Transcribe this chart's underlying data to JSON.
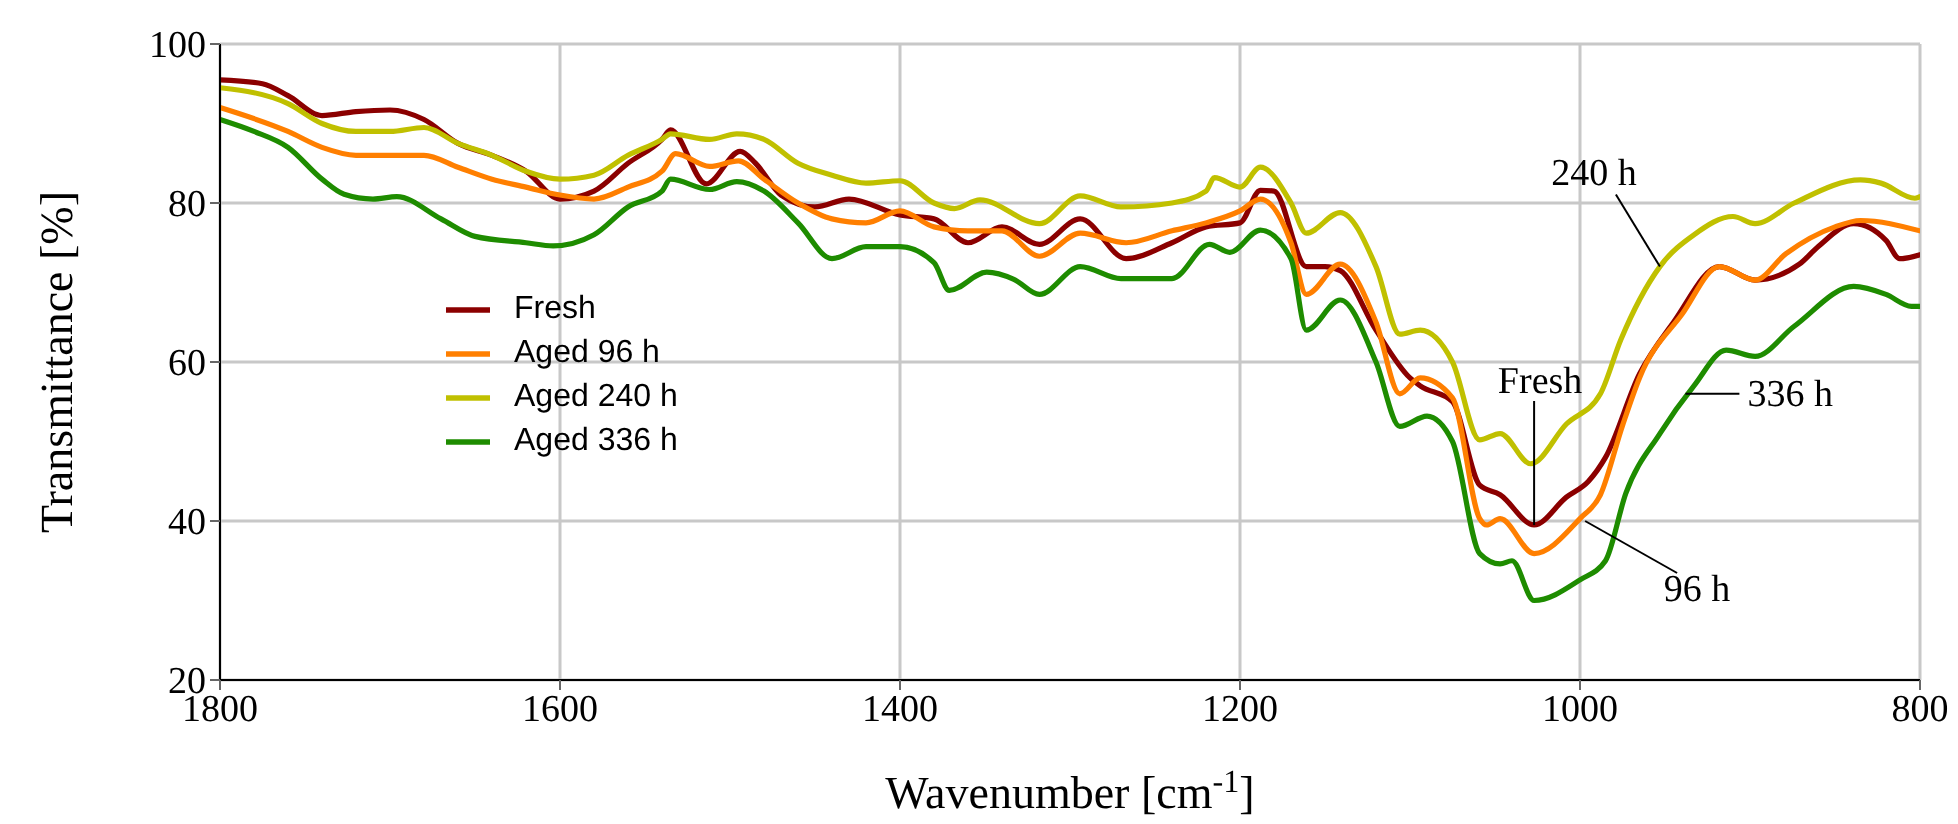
{
  "chart_data": {
    "type": "line",
    "xlabel": "Wavenumber [cm$^{-1}$]",
    "ylabel": "Transmittance [%]",
    "xlim": [
      1800,
      800
    ],
    "xticks": [
      1800,
      1600,
      1400,
      1200,
      1000,
      800
    ],
    "ylim": [
      20,
      100
    ],
    "yticks": [
      20,
      40,
      60,
      80,
      100
    ],
    "grid": true,
    "legend": "left",
    "marker": "none",
    "line_style": "solid",
    "series": [
      {
        "name": "Fresh",
        "color": "#8b0000",
        "x": [
          1800,
          1775,
          1760,
          1740,
          1720,
          1700,
          1680,
          1660,
          1640,
          1620,
          1600,
          1580,
          1560,
          1540,
          1535,
          1514,
          1494,
          1485,
          1470,
          1450,
          1430,
          1400,
          1380,
          1360,
          1340,
          1318,
          1294,
          1267,
          1240,
          1220,
          1200,
          1188,
          1180,
          1161,
          1150,
          1141,
          1120,
          1100,
          1094,
          1075,
          1059,
          1047,
          1027,
          1008,
          995,
          985,
          965,
          945,
          918,
          897,
          871,
          860,
          839,
          820,
          812,
          800
        ],
        "values": [
          95.5,
          95,
          93.5,
          91,
          91.5,
          91.7,
          90.5,
          87.5,
          86,
          84,
          80.5,
          81.5,
          85,
          88,
          89.2,
          82.4,
          86.5,
          85,
          81,
          79.5,
          80.5,
          78.5,
          78,
          75,
          77,
          74.8,
          78,
          73,
          75,
          77,
          77.5,
          81.6,
          81.5,
          72,
          72,
          71.5,
          64,
          58,
          57,
          55,
          44.5,
          43.3,
          39.5,
          43,
          45,
          48,
          58.5,
          65,
          72,
          70.3,
          72.3,
          74.5,
          77.4,
          75.3,
          73,
          73.5
        ]
      },
      {
        "name": "Aged 96 h",
        "color": "#ff7f00",
        "x": [
          1800,
          1760,
          1740,
          1720,
          1700,
          1680,
          1660,
          1640,
          1620,
          1600,
          1580,
          1560,
          1540,
          1532,
          1512,
          1495,
          1480,
          1460,
          1440,
          1420,
          1400,
          1380,
          1360,
          1340,
          1318,
          1294,
          1267,
          1240,
          1220,
          1200,
          1188,
          1170,
          1161,
          1141,
          1120,
          1106,
          1094,
          1075,
          1059,
          1055,
          1047,
          1027,
          1000,
          988,
          975,
          965,
          940,
          918,
          897,
          879,
          850,
          835,
          800
        ],
        "values": [
          92,
          89,
          87,
          86,
          86,
          86,
          84.5,
          83,
          82,
          81,
          80.5,
          82,
          84,
          86.2,
          84.6,
          85.3,
          83,
          80,
          78,
          77.5,
          79,
          77,
          76.5,
          76.5,
          73.3,
          76.2,
          75,
          76.5,
          77.5,
          79,
          80.5,
          75,
          68.5,
          72.3,
          65,
          56,
          58,
          55.5,
          40.3,
          39.5,
          40.3,
          35.9,
          40.3,
          43.3,
          52,
          58,
          66,
          72,
          70.3,
          73.6,
          77,
          77.8,
          76.5
        ]
      },
      {
        "name": "Aged 240 h",
        "color": "#c0c000",
        "x": [
          1800,
          1760,
          1740,
          1720,
          1700,
          1680,
          1660,
          1640,
          1620,
          1600,
          1580,
          1560,
          1540,
          1535,
          1512,
          1496,
          1480,
          1460,
          1440,
          1420,
          1400,
          1380,
          1368,
          1353,
          1318,
          1294,
          1270,
          1240,
          1220,
          1215,
          1200,
          1188,
          1170,
          1161,
          1141,
          1120,
          1106,
          1094,
          1075,
          1059,
          1047,
          1029,
          1008,
          988,
          976,
          953,
          933,
          910,
          897,
          874,
          835,
          823,
          803,
          800
        ],
        "values": [
          94.5,
          92.5,
          90,
          89,
          89,
          89.5,
          87.5,
          86,
          84,
          83,
          83.5,
          86,
          88,
          88.7,
          88,
          88.7,
          88,
          85,
          83.5,
          82.5,
          82.8,
          80,
          79.3,
          80.4,
          77.4,
          80.9,
          79.5,
          80,
          81.5,
          83.2,
          82,
          84.5,
          80,
          76.2,
          78.8,
          72,
          63.5,
          64,
          60,
          50.2,
          51,
          47.2,
          52.2,
          56,
          62.8,
          72,
          76,
          78.3,
          77.4,
          80,
          82.9,
          82.5,
          80.6,
          80.8
        ]
      },
      {
        "name": "Aged 336 h",
        "color": "#1e8c00",
        "x": [
          1800,
          1780,
          1760,
          1740,
          1727,
          1710,
          1696,
          1670,
          1650,
          1620,
          1604,
          1580,
          1560,
          1540,
          1535,
          1512,
          1496,
          1480,
          1460,
          1440,
          1420,
          1400,
          1380,
          1371,
          1349,
          1333,
          1318,
          1294,
          1270,
          1240,
          1218,
          1206,
          1188,
          1170,
          1161,
          1141,
          1120,
          1106,
          1090,
          1075,
          1059,
          1047,
          1040,
          1027,
          1000,
          985,
          973,
          953,
          933,
          914,
          897,
          874,
          839,
          820,
          805,
          800
        ],
        "values": [
          90.5,
          89,
          87,
          83,
          81.1,
          80.5,
          80.8,
          78,
          75.8,
          75,
          74.6,
          76,
          79.5,
          81.5,
          83,
          81.7,
          82.7,
          81.5,
          77.5,
          73,
          74.5,
          74.5,
          72.5,
          69,
          71.3,
          70.4,
          68.5,
          72,
          70.5,
          70.5,
          74.8,
          73.8,
          76.6,
          73,
          64,
          67.8,
          60,
          51.9,
          53.2,
          50,
          35.9,
          34.6,
          35,
          30,
          32.6,
          35,
          43.5,
          51,
          57,
          61.5,
          60.7,
          64.5,
          69.5,
          68.5,
          67,
          67
        ]
      }
    ],
    "annotations": [
      {
        "text": "240 h",
        "x": 953,
        "y": 72
      },
      {
        "text": "Fresh",
        "x": 1027,
        "y": 39.5
      },
      {
        "text": "96 h",
        "x": 997,
        "y": 40
      },
      {
        "text": "336 h",
        "x": 938,
        "y": 56
      }
    ]
  }
}
